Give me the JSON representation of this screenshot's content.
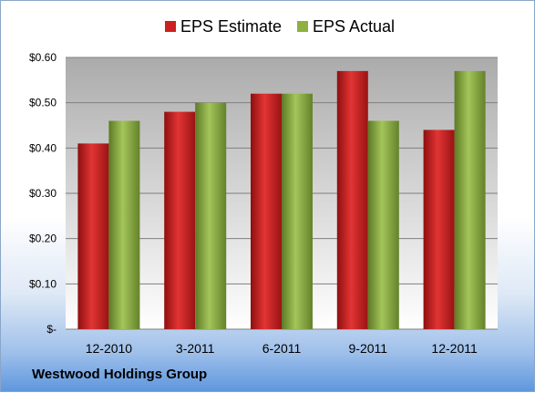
{
  "chart_data": {
    "type": "bar",
    "categories": [
      "12-2010",
      "3-2011",
      "6-2011",
      "9-2011",
      "12-2011"
    ],
    "series": [
      {
        "name": "EPS Estimate",
        "values": [
          0.41,
          0.48,
          0.52,
          0.57,
          0.44
        ],
        "color": "#cc1f1f"
      },
      {
        "name": "EPS Actual",
        "values": [
          0.46,
          0.5,
          0.52,
          0.46,
          0.57
        ],
        "color": "#8db040"
      }
    ],
    "ylim": [
      0,
      0.6
    ],
    "yticks": [
      0,
      0.1,
      0.2,
      0.3,
      0.4,
      0.5,
      0.6
    ],
    "ytick_labels": [
      "$-",
      "$0.10",
      "$0.20",
      "$0.30",
      "$0.40",
      "$0.50",
      "$0.60"
    ],
    "grid": true,
    "legend_position": "top-center"
  },
  "company": "Westwood Holdings Group"
}
